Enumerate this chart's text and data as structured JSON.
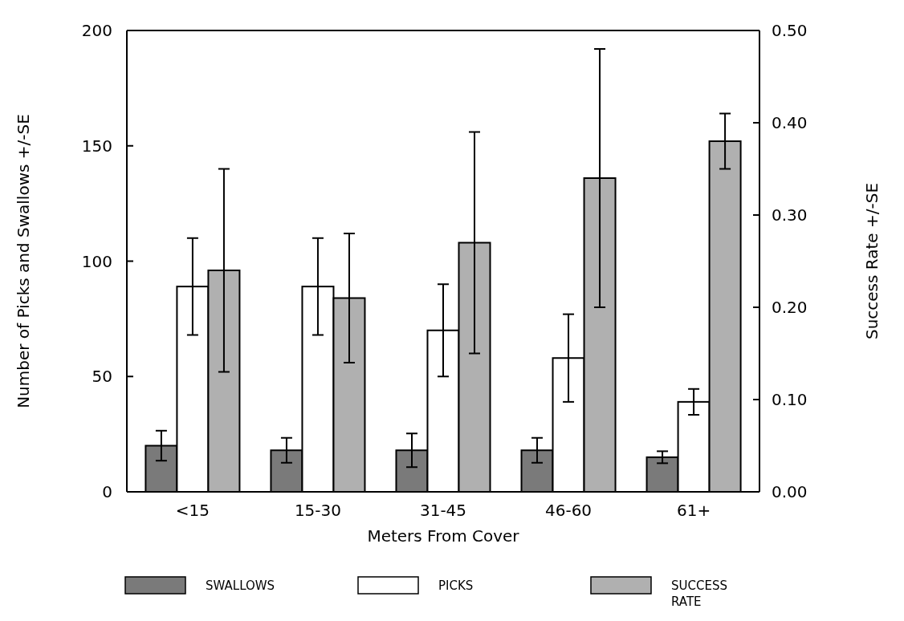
{
  "chart_data": {
    "type": "bar",
    "xlabel": "Meters From Cover",
    "ylabel": "Number of Picks and Swallows +/-SE",
    "y2label": "Success Rate +/-SE",
    "categories": [
      "<15",
      "15-30",
      "31-45",
      "46-60",
      "61+"
    ],
    "series": [
      {
        "name": "SWALLOWS",
        "color": "#7a7a7a",
        "values": [
          20,
          18,
          18,
          18,
          15
        ],
        "errors": [
          6.5,
          5.4,
          7.3,
          5.4,
          2.6
        ]
      },
      {
        "name": "PICKS",
        "color": "#ffffff",
        "values": [
          89,
          89,
          70,
          58,
          39
        ],
        "errors": [
          21,
          21,
          20,
          19,
          5.6
        ]
      },
      {
        "name": "SUCCESS RATE",
        "color": "#b0b0b0",
        "axis": "y2",
        "values": [
          0.24,
          0.21,
          0.27,
          0.34,
          0.38
        ],
        "errors": [
          0.11,
          0.07,
          0.12,
          0.14,
          0.03
        ]
      }
    ],
    "ylim": [
      0,
      200
    ],
    "yticks": [
      0,
      50,
      100,
      150,
      200
    ],
    "y2lim": [
      0,
      0.5
    ],
    "y2ticks": [
      {
        "value": 0,
        "label": "0.00"
      },
      {
        "value": 0.1,
        "label": "0.10"
      },
      {
        "value": 0.2,
        "label": "0.20"
      },
      {
        "value": 0.3,
        "label": "0.30"
      },
      {
        "value": 0.4,
        "label": "0.40"
      },
      {
        "value": 0.5,
        "label": "0.50"
      }
    ],
    "grid": false,
    "legend": "bottom"
  }
}
